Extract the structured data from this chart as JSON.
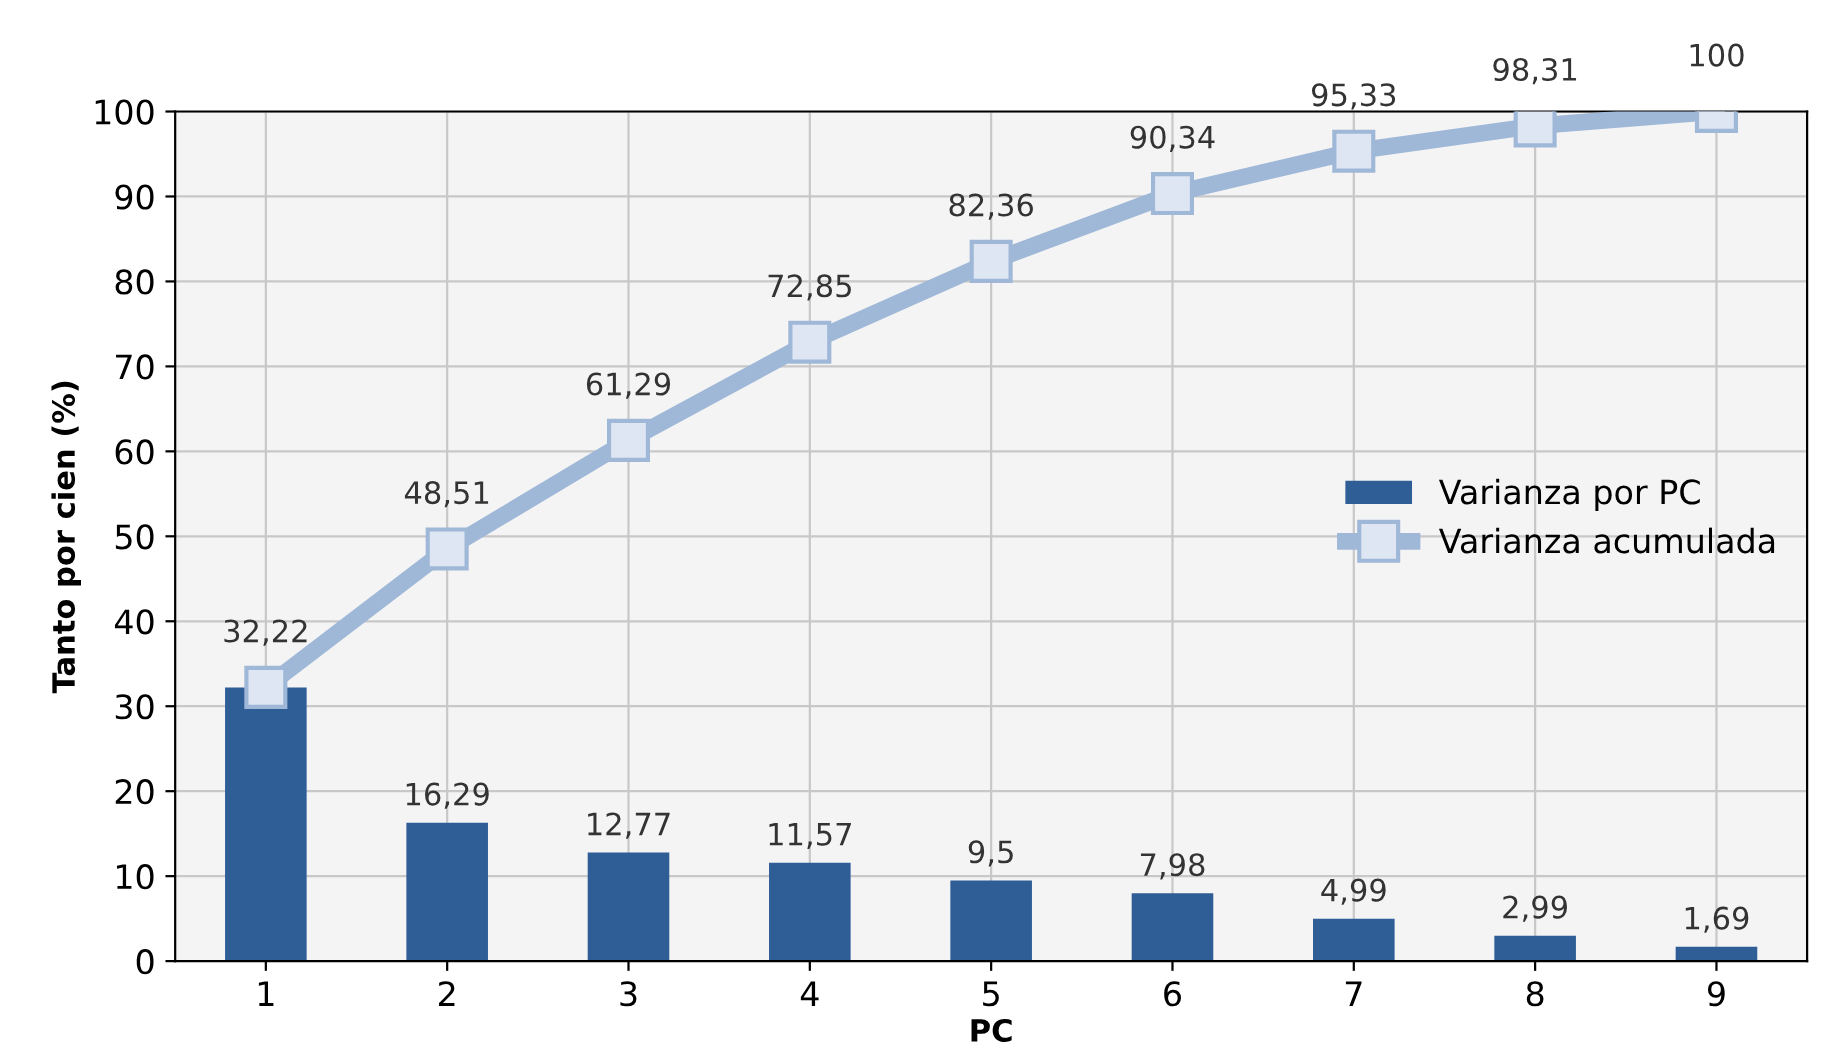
{
  "chart_data": {
    "type": "bar",
    "xlabel": "PC",
    "ylabel": "Tanto por cien (%)",
    "categories": [
      "1",
      "2",
      "3",
      "4",
      "5",
      "6",
      "7",
      "8",
      "9"
    ],
    "series": [
      {
        "name": "Varianza por PC",
        "color": "#2f5d96",
        "values": [
          32.2,
          16.29,
          12.77,
          11.57,
          9.5,
          7.98,
          4.99,
          2.99,
          1.69
        ],
        "value_labels": [
          null,
          "16,29",
          "12,77",
          "11,57",
          "9,5",
          "7,98",
          "4,99",
          "2,99",
          "1,69"
        ]
      },
      {
        "name": "Varianza acumulada",
        "type": "line",
        "color": "#9fb8d8",
        "marker": "square",
        "values": [
          32.22,
          48.51,
          61.29,
          72.85,
          82.36,
          90.34,
          95.33,
          98.31,
          100
        ],
        "value_labels": [
          "32,22",
          "48,51",
          "61,29",
          "72,85",
          "82,36",
          "90,34",
          "95,33",
          "98,31",
          "100"
        ]
      }
    ],
    "ylim": [
      0,
      100
    ],
    "yticks": [
      0,
      10,
      20,
      30,
      40,
      50,
      60,
      70,
      80,
      90,
      100
    ],
    "grid": true,
    "legend": "right"
  }
}
